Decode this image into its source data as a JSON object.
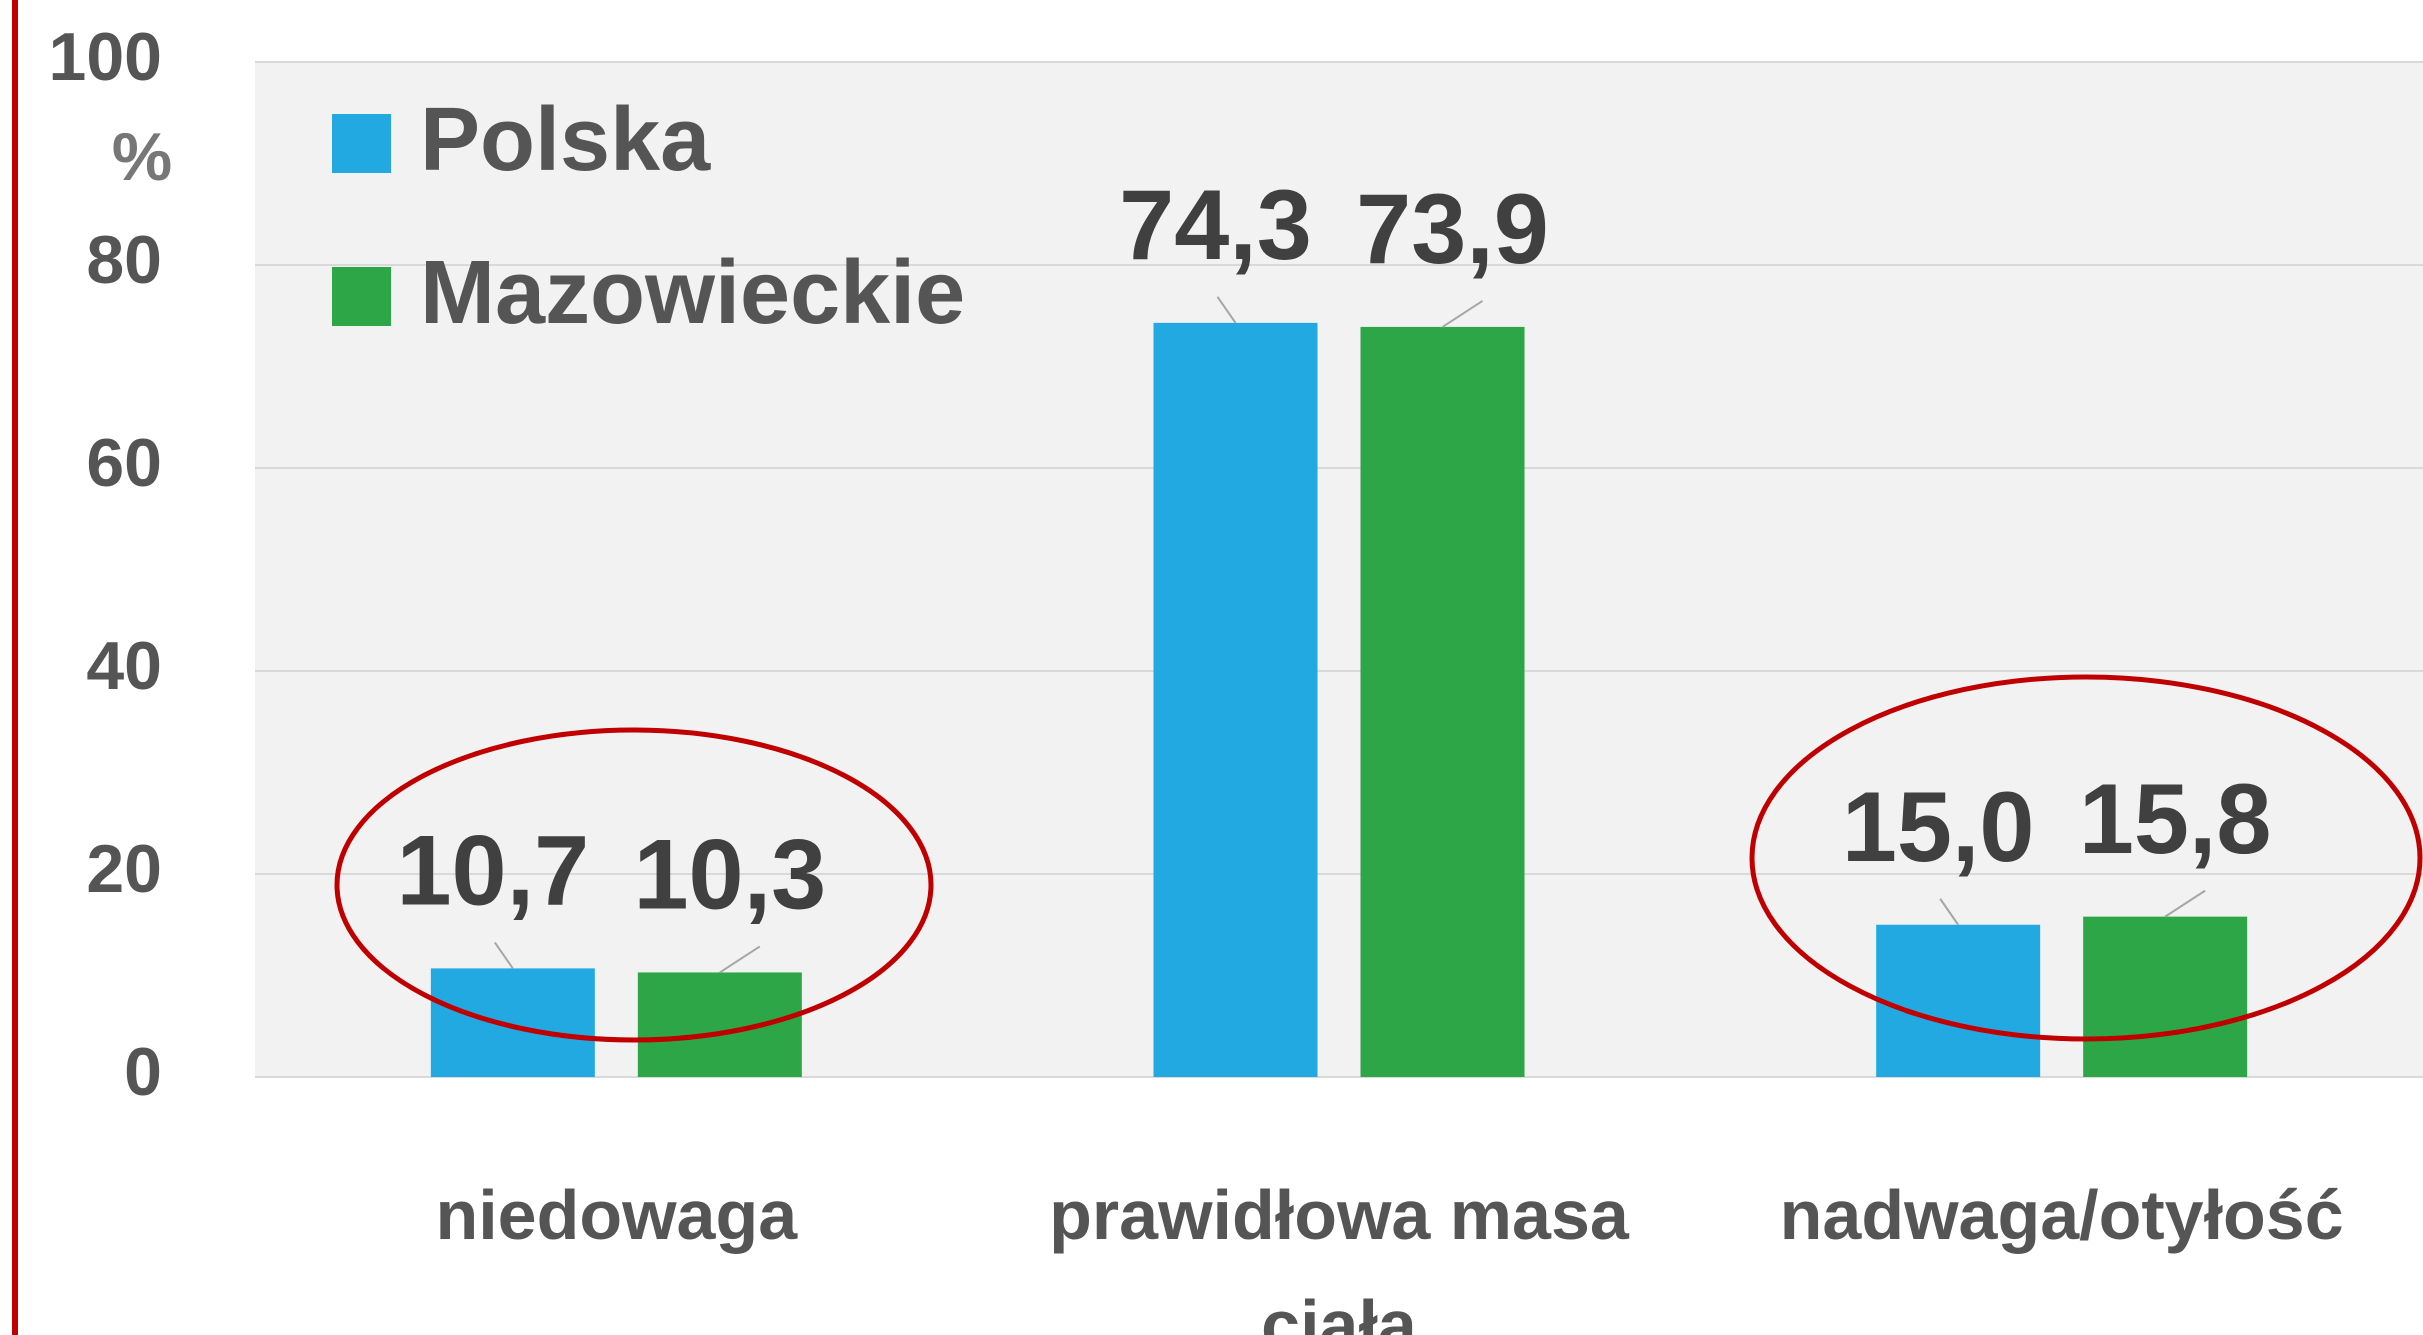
{
  "chart_data": {
    "type": "bar",
    "categories": [
      "niedowaga",
      "prawidłowa masa ciała",
      "nadwaga/otyłość"
    ],
    "series": [
      {
        "name": "Polska",
        "color": "#22a9e1",
        "values": [
          10.7,
          74.3,
          15.0
        ],
        "value_labels": [
          "10,7",
          "74,3",
          "15,0"
        ]
      },
      {
        "name": "Mazowieckie",
        "color": "#2ca646",
        "values": [
          10.3,
          73.9,
          15.8
        ],
        "value_labels": [
          "10,3",
          "73,9",
          "15,8"
        ]
      }
    ],
    "y_axis_label": "%",
    "ylim": [
      0,
      100
    ],
    "yticks": [
      0,
      20,
      40,
      60,
      80,
      100
    ],
    "grid": true,
    "legend": "top-left"
  }
}
